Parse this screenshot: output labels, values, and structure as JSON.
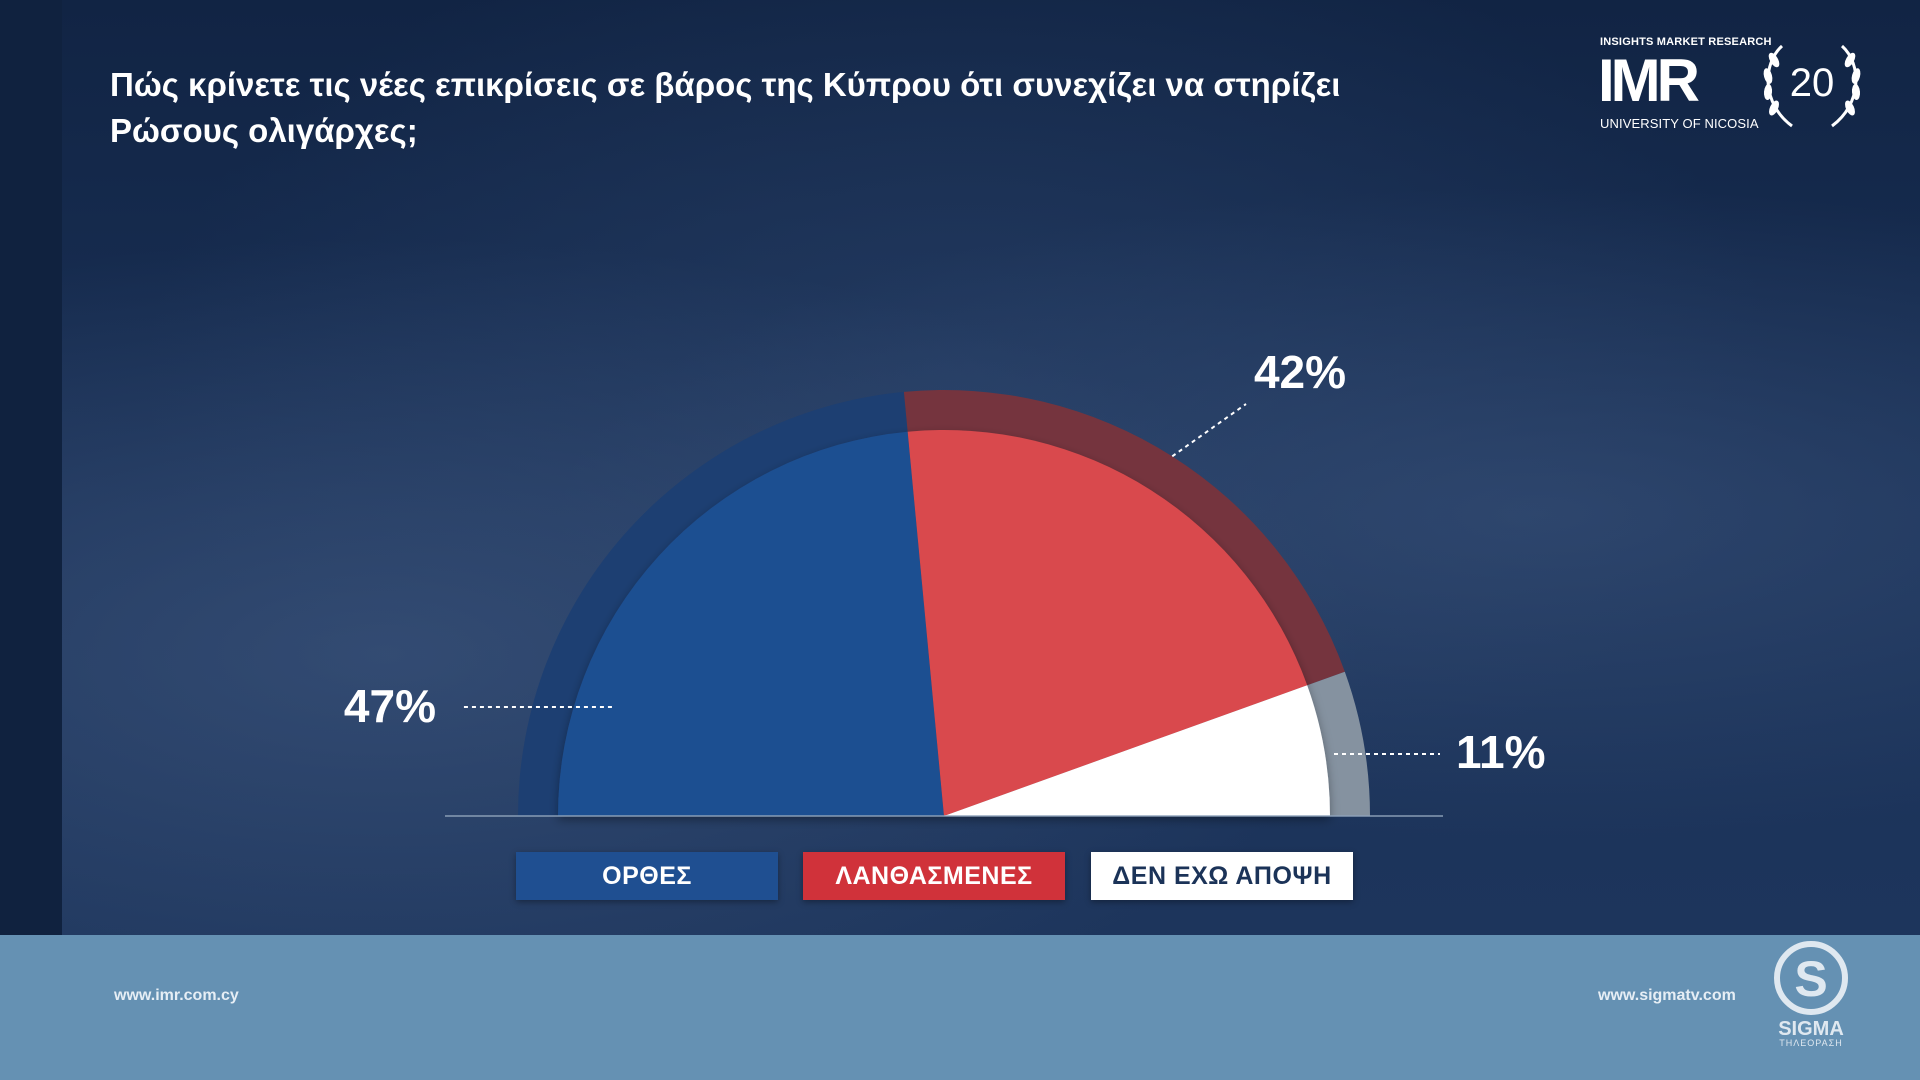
{
  "title": "Πώς κρίνετε τις νέες επικρίσεις σε βάρος της Κύπρου ότι συνεχίζει να στηρίζει Ρώσους ολιγάρχες;",
  "logo": {
    "imr_top": "INSIGHTS MARKET RESEARCH",
    "imr_mark": "IMR",
    "imr_bottom": "UNIVERSITY OF NICOSIA",
    "anniversary": "20",
    "sigma": "SIGMA",
    "sigma_sub": "ΤΗΛΕΟΡΑΣΗ"
  },
  "footer": {
    "left_url": "www.imr.com.cy",
    "right_url": "www.sigmatv.com"
  },
  "chart_data": {
    "type": "pie",
    "subtype": "semicircle",
    "categories": [
      "ΟΡΘΕΣ",
      "ΛΑΝΘΑΣΜΕΝΕΣ",
      "ΔΕΝ ΕΧΩ ΑΠΟΨΗ"
    ],
    "values": [
      47,
      42,
      11
    ],
    "labels": [
      "47%",
      "42%",
      "11%"
    ],
    "colors": [
      "#1f4f91",
      "#d94a4e",
      "#ffffff"
    ],
    "outer_colors": [
      "#1d3f72",
      "#75343e",
      "#8592a0"
    ],
    "legend_text_colors": [
      "#ffffff",
      "#ffffff",
      "#1b3358"
    ],
    "legend_bg_colors": [
      "#1f4f91",
      "#d0323a",
      "#ffffff"
    ],
    "legend": "bottom"
  }
}
